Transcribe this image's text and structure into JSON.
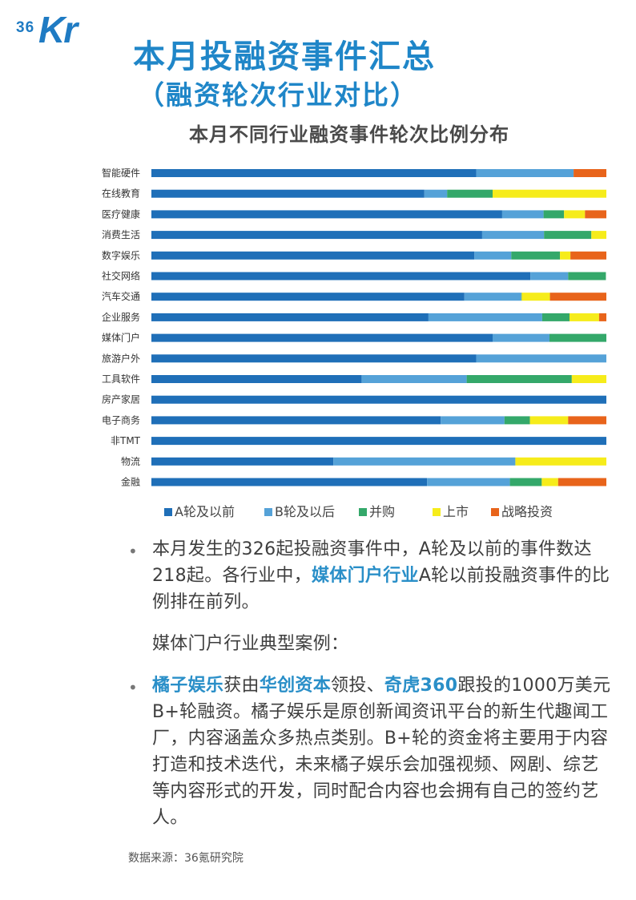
{
  "logo": {
    "num": "36",
    "kr": "Kr"
  },
  "header": {
    "title": "本月投融资事件汇总",
    "subtitle": "（融资轮次行业对比）"
  },
  "chart_data": {
    "type": "bar",
    "orientation": "horizontal",
    "stacked": true,
    "percent_stacked": true,
    "title": "本月不同行业融资事件轮次比例分布",
    "categories": [
      "智能硬件",
      "在线教育",
      "医疗健康",
      "消费生活",
      "数字娱乐",
      "社交网络",
      "汽车交通",
      "企业服务",
      "媒体门户",
      "旅游户外",
      "工具软件",
      "房产家居",
      "电子商务",
      "非TMT",
      "物流",
      "金融"
    ],
    "series": [
      {
        "name": "A轮及以前",
        "color": "#1f6fb8",
        "values": [
          0.714,
          0.6,
          0.771,
          0.727,
          0.71,
          0.833,
          0.688,
          0.609,
          0.75,
          0.714,
          0.462,
          1.0,
          0.636,
          1.0,
          0.4,
          0.606
        ]
      },
      {
        "name": "B轮及以后",
        "color": "#55a2d8",
        "values": [
          0.214,
          0.05,
          0.091,
          0.136,
          0.081,
          0.083,
          0.125,
          0.25,
          0.125,
          0.286,
          0.231,
          0,
          0.14,
          0,
          0.4,
          0.182
        ]
      },
      {
        "name": "并购",
        "color": "#34a86a",
        "values": [
          0,
          0.1,
          0.045,
          0.104,
          0.107,
          0.083,
          0.001,
          0.06,
          0.125,
          0,
          0.231,
          0,
          0.056,
          0,
          0,
          0.07
        ]
      },
      {
        "name": "上市",
        "color": "#f6ec1b",
        "values": [
          0,
          0.25,
          0.046,
          0.033,
          0.023,
          0,
          0.062,
          0.065,
          0,
          0,
          0.076,
          0,
          0.084,
          0,
          0.2,
          0.036
        ]
      },
      {
        "name": "战略投资",
        "color": "#e8641b",
        "values": [
          0.072,
          0,
          0.047,
          0,
          0.079,
          0,
          0.124,
          0.016,
          0,
          0,
          0,
          0,
          0.084,
          0,
          0,
          0.106
        ]
      }
    ],
    "xlim": [
      0,
      1
    ],
    "grid": false,
    "legend_position": "bottom"
  },
  "content": {
    "p1a": "本月发生的326起投融资事件中，A轮及以前的事件数达218起。各行业中，",
    "p1_hl": "媒体门户行业",
    "p1b": "A轮以前投融资事件的比例排在前列。",
    "p2": "媒体门户行业典型案例：",
    "p3_hl1": "橘子娱乐",
    "p3a": "获由",
    "p3_hl2": "华创资本",
    "p3b": "领投、",
    "p3_hl3": "奇虎360",
    "p3c": "跟投的1000万美元B+轮融资。橘子娱乐是原创新闻资讯平台的新生代趣闻工厂，内容涵盖众多热点类别。B+轮的资金将主要用于内容打造和技术迭代，未来橘子娱乐会加强视频、网剧、综艺等内容形式的开发，同时配合内容也会拥有自己的签约艺人。",
    "bullet": "•",
    "source": "数据来源：36氪研究院"
  }
}
